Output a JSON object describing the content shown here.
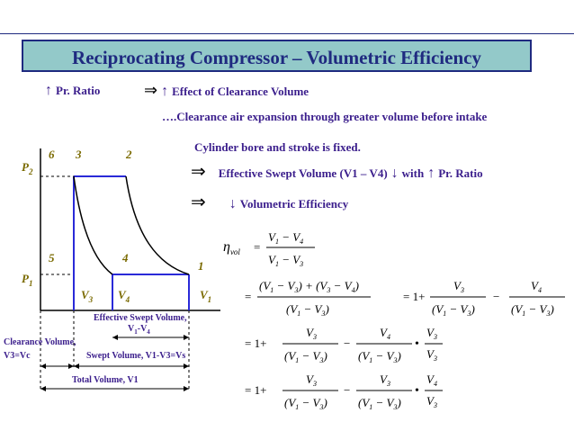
{
  "title": "Reciprocating Compressor – Volumetric Efficiency",
  "top_line": {
    "pr_ratio": "Pr. Ratio",
    "effect": "Effect of Clearance Volume",
    "implies_symbol": "⇒",
    "up_arrow": "↑"
  },
  "notes": {
    "clearance_expansion": "….Clearance air expansion through greater volume before intake",
    "bore_fixed": "Cylinder bore and stroke is fixed.",
    "swept_volume": "Effective Swept Volume (V1 – V4)",
    "with": "with",
    "pr_ratio": "Pr. Ratio",
    "vol_eff": "Volumetric Efficiency",
    "down_arrow": "↓"
  },
  "diagram": {
    "points": {
      "p1": "1",
      "p2": "2",
      "p3": "3",
      "p4": "4",
      "p5": "5",
      "p6": "6"
    },
    "axis": {
      "P2": "P",
      "P2_sub": "2",
      "P1": "P",
      "P1_sub": "1",
      "V3": "V",
      "V3_sub": "3",
      "V4": "V",
      "V4_sub": "4",
      "V1": "V",
      "V1_sub": "1"
    },
    "labels": {
      "eff_swept_1": "Effective Swept Volume,",
      "eff_swept_2a": "V",
      "eff_swept_2b": "1",
      "eff_swept_2c": "-V",
      "eff_swept_2d": "4",
      "clearance_1": "Clearance Volume,",
      "clearance_2": "V3=Vc",
      "swept": "Swept Volume, V1-V3=Vs",
      "total": "Total Volume, V1"
    }
  },
  "equations": {
    "eta": "η",
    "eta_sub": "vol",
    "equals": "=",
    "one_plus": "= 1+",
    "minus": "−",
    "dot": "•"
  }
}
